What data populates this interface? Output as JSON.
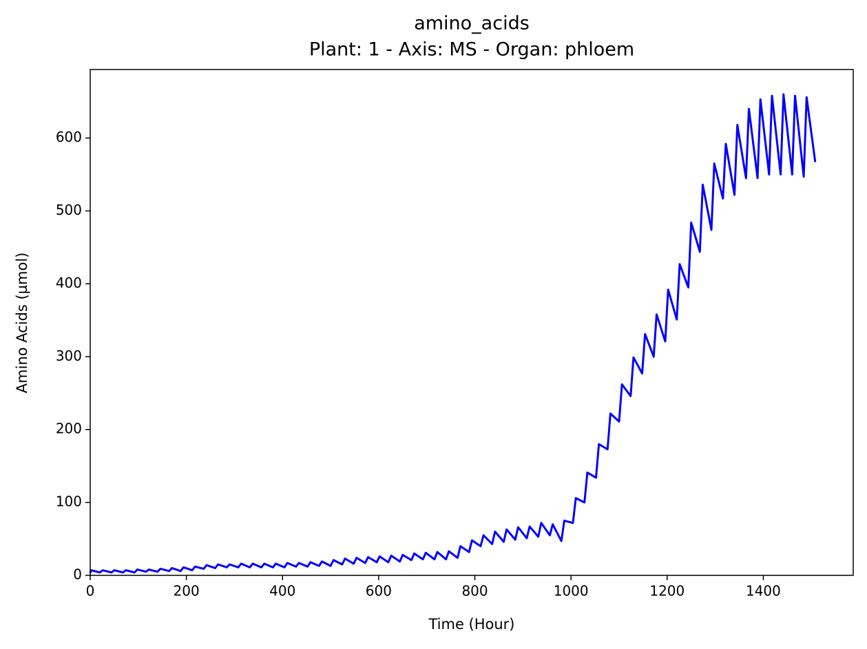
{
  "chart_data": {
    "type": "line",
    "title": "amino_acids",
    "subtitle": "Plant: 1 - Axis: MS - Organ: phloem",
    "x_label": "Time (Hour)",
    "y_label": "Amino Acids (µmol)",
    "color": "#0000ff",
    "xlim": [
      0,
      1587
    ],
    "ylim": [
      0,
      694
    ],
    "xticks": [
      0,
      200,
      400,
      600,
      800,
      1000,
      1200,
      1400
    ],
    "yticks": [
      0,
      100,
      200,
      300,
      400,
      500,
      600
    ],
    "grid": false,
    "x": [
      0,
      2,
      20,
      26,
      44,
      50,
      68,
      74,
      92,
      98,
      116,
      122,
      140,
      146,
      164,
      170,
      188,
      194,
      212,
      218,
      236,
      242,
      260,
      266,
      284,
      290,
      308,
      314,
      332,
      338,
      356,
      362,
      380,
      386,
      404,
      410,
      428,
      434,
      452,
      458,
      476,
      482,
      500,
      506,
      524,
      530,
      548,
      554,
      572,
      578,
      596,
      602,
      620,
      626,
      644,
      650,
      668,
      674,
      692,
      698,
      716,
      722,
      740,
      746,
      764,
      770,
      788,
      794,
      812,
      818,
      836,
      842,
      860,
      866,
      884,
      890,
      908,
      914,
      932,
      938,
      956,
      962,
      980,
      986,
      1004,
      1010,
      1028,
      1034,
      1052,
      1058,
      1076,
      1082,
      1100,
      1106,
      1124,
      1130,
      1148,
      1154,
      1172,
      1178,
      1196,
      1202,
      1220,
      1226,
      1244,
      1250,
      1268,
      1274,
      1292,
      1298,
      1316,
      1322,
      1340,
      1346,
      1364,
      1370,
      1388,
      1394,
      1412,
      1418,
      1436,
      1442,
      1460,
      1466,
      1484,
      1490,
      1508
    ],
    "values": [
      3,
      7,
      4,
      7,
      4,
      7,
      4,
      7,
      4,
      8,
      5,
      8,
      5,
      9,
      6,
      10,
      6,
      11,
      7,
      12,
      9,
      14,
      10,
      15,
      11,
      15,
      11,
      16,
      11,
      16,
      11,
      16,
      11,
      16,
      11,
      17,
      12,
      17,
      12,
      18,
      13,
      19,
      13,
      21,
      15,
      23,
      16,
      24,
      17,
      25,
      18,
      26,
      18,
      27,
      19,
      28,
      21,
      30,
      22,
      31,
      22,
      32,
      22,
      33,
      24,
      40,
      32,
      48,
      40,
      55,
      43,
      60,
      46,
      63,
      49,
      66,
      51,
      67,
      53,
      72,
      55,
      70,
      47,
      75,
      72,
      106,
      100,
      141,
      134,
      180,
      173,
      222,
      211,
      262,
      246,
      299,
      277,
      331,
      300,
      358,
      321,
      392,
      351,
      427,
      395,
      484,
      444,
      536,
      474,
      565,
      517,
      592,
      522,
      618,
      545,
      640,
      545,
      653,
      550,
      658,
      550,
      660,
      550,
      658,
      547,
      656,
      567
    ]
  }
}
